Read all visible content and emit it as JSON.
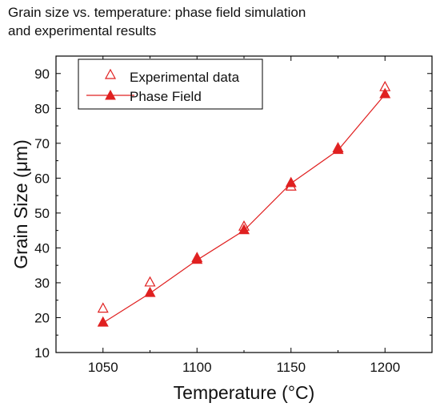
{
  "chart_data": {
    "type": "line",
    "title_lines": [
      "Grain size vs. temperature: phase field simulation",
      "and experimental results"
    ],
    "xlabel": "Temperature (°C)",
    "ylabel": "Grain Size (μm)",
    "xlim": [
      1025,
      1225
    ],
    "ylim": [
      10,
      95
    ],
    "xticks": [
      1050,
      1100,
      1150,
      1200
    ],
    "yticks": [
      10,
      20,
      30,
      40,
      50,
      60,
      70,
      80,
      90
    ],
    "legend_position": "top-left",
    "series": [
      {
        "name": "Experimental data",
        "marker": "open-triangle",
        "line": false,
        "color": "#e02020",
        "x": [
          1050,
          1075,
          1100,
          1125,
          1150,
          1175,
          1200
        ],
        "y": [
          22.5,
          30,
          37,
          46,
          57.5,
          68.5,
          86
        ]
      },
      {
        "name": "Phase Field",
        "marker": "filled-triangle",
        "line": true,
        "color": "#e02020",
        "x": [
          1050,
          1075,
          1100,
          1125,
          1150,
          1175,
          1200
        ],
        "y": [
          18.5,
          27,
          36.5,
          45,
          58.5,
          68,
          84
        ]
      }
    ]
  }
}
